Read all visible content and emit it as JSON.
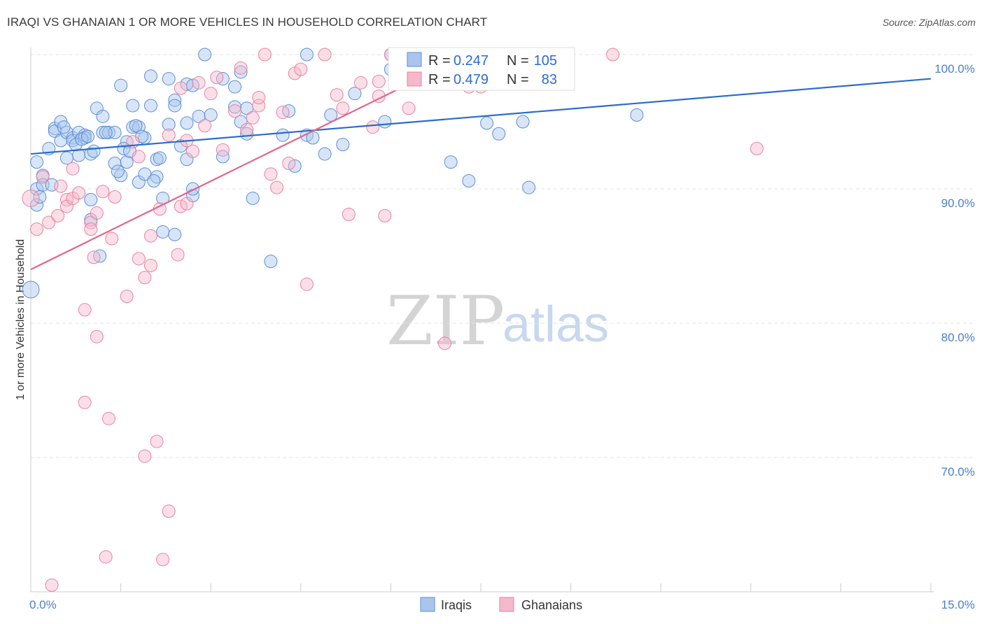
{
  "header": {
    "title": "IRAQI VS GHANAIAN 1 OR MORE VEHICLES IN HOUSEHOLD CORRELATION CHART",
    "source": "Source: ZipAtlas.com"
  },
  "watermark": {
    "zip": "ZIP",
    "atlas": "atlas"
  },
  "colors": {
    "iraqis_fill": "#a9c5ee",
    "iraqis_stroke": "#5b8fd6",
    "iraqis_line": "#2a6cc9",
    "ghanaians_fill": "#f6b8cb",
    "ghanaians_stroke": "#e8829f",
    "ghanaians_line": "#e3648c",
    "tick_text": "#4a7fd0",
    "grid": "#e3e3e3"
  },
  "legend": {
    "iraqis": {
      "r_label": "R =",
      "r_value": "0.247",
      "n_label": "N =",
      "n_value": "105"
    },
    "ghanaians": {
      "r_label": "R =",
      "r_value": "0.479",
      "n_label": "N =",
      "n_value": "83"
    }
  },
  "chart_data": {
    "type": "scatter",
    "title": "IRAQI VS GHANAIAN 1 OR MORE VEHICLES IN HOUSEHOLD CORRELATION CHART",
    "xlabel": "",
    "ylabel": "1 or more Vehicles in Household",
    "xlim": [
      0,
      15
    ],
    "ylim": [
      59.5,
      100.7
    ],
    "x_tick_labels": [
      "0.0%",
      "15.0%"
    ],
    "y_ticks": [
      100,
      90,
      80,
      70
    ],
    "y_tick_labels": [
      "100.0%",
      "90.0%",
      "80.0%",
      "70.0%"
    ],
    "legend_position": "top-center",
    "bottom_legend": [
      "Iraqis",
      "Ghanaians"
    ],
    "series": [
      {
        "name": "Iraqis",
        "trendline": {
          "x0": 0.0,
          "y0": 92.6,
          "x1": 15.0,
          "y1": 98.2
        },
        "points": [
          [
            0.0,
            82.5
          ],
          [
            0.1,
            88.8
          ],
          [
            0.1,
            90.0
          ],
          [
            0.1,
            92.0
          ],
          [
            0.2,
            91.0
          ],
          [
            0.2,
            90.3
          ],
          [
            0.3,
            93.0
          ],
          [
            0.4,
            94.5
          ],
          [
            0.4,
            94.3
          ],
          [
            0.5,
            95.0
          ],
          [
            0.5,
            93.6
          ],
          [
            0.6,
            94.2
          ],
          [
            0.6,
            92.3
          ],
          [
            0.7,
            93.8
          ],
          [
            0.7,
            93.6
          ],
          [
            0.8,
            94.2
          ],
          [
            0.8,
            92.5
          ],
          [
            0.9,
            94.0
          ],
          [
            0.9,
            93.8
          ],
          [
            1.0,
            92.6
          ],
          [
            1.0,
            89.2
          ],
          [
            1.0,
            87.7
          ],
          [
            1.1,
            96.0
          ],
          [
            1.2,
            95.4
          ],
          [
            1.2,
            94.2
          ],
          [
            1.3,
            94.2
          ],
          [
            1.4,
            94.2
          ],
          [
            1.4,
            91.9
          ],
          [
            1.5,
            97.7
          ],
          [
            1.5,
            91.0
          ],
          [
            1.6,
            93.5
          ],
          [
            1.6,
            92.0
          ],
          [
            1.7,
            94.6
          ],
          [
            1.7,
            96.2
          ],
          [
            1.8,
            90.5
          ],
          [
            1.8,
            94.6
          ],
          [
            1.9,
            93.8
          ],
          [
            1.9,
            91.1
          ],
          [
            2.0,
            98.4
          ],
          [
            2.0,
            96.2
          ],
          [
            2.1,
            92.2
          ],
          [
            2.1,
            90.9
          ],
          [
            2.2,
            89.3
          ],
          [
            2.2,
            86.8
          ],
          [
            2.3,
            98.2
          ],
          [
            2.3,
            94.8
          ],
          [
            2.4,
            96.6
          ],
          [
            2.4,
            96.2
          ],
          [
            2.4,
            86.6
          ],
          [
            2.5,
            93.2
          ],
          [
            2.6,
            97.8
          ],
          [
            2.6,
            94.9
          ],
          [
            2.6,
            92.2
          ],
          [
            2.7,
            89.5
          ],
          [
            2.7,
            90.0
          ],
          [
            2.7,
            97.7
          ],
          [
            2.8,
            95.4
          ],
          [
            2.9,
            100.0
          ],
          [
            3.0,
            95.5
          ],
          [
            3.2,
            98.2
          ],
          [
            3.2,
            92.4
          ],
          [
            3.4,
            97.6
          ],
          [
            3.4,
            96.1
          ],
          [
            3.5,
            98.7
          ],
          [
            3.5,
            95.0
          ],
          [
            3.6,
            94.1
          ],
          [
            3.6,
            96.0
          ],
          [
            3.7,
            89.3
          ],
          [
            4.0,
            84.6
          ],
          [
            4.2,
            94.0
          ],
          [
            4.3,
            95.8
          ],
          [
            4.4,
            91.7
          ],
          [
            4.6,
            94.0
          ],
          [
            4.6,
            100.0
          ],
          [
            4.7,
            93.8
          ],
          [
            4.9,
            92.6
          ],
          [
            5.0,
            95.5
          ],
          [
            5.2,
            93.3
          ],
          [
            5.4,
            97.1
          ],
          [
            5.9,
            95.0
          ],
          [
            6.0,
            100.0
          ],
          [
            6.0,
            98.9
          ],
          [
            7.0,
            92.0
          ],
          [
            7.3,
            90.6
          ],
          [
            7.6,
            94.9
          ],
          [
            7.8,
            94.1
          ],
          [
            8.2,
            95.0
          ],
          [
            8.3,
            90.1
          ],
          [
            10.1,
            95.5
          ],
          [
            1.15,
            85.0
          ],
          [
            0.15,
            89.4
          ],
          [
            0.35,
            90.3
          ],
          [
            0.55,
            94.6
          ],
          [
            0.75,
            93.3
          ],
          [
            0.85,
            93.7
          ],
          [
            0.95,
            93.9
          ],
          [
            1.05,
            92.8
          ],
          [
            1.25,
            94.2
          ],
          [
            1.45,
            91.3
          ],
          [
            1.55,
            93.0
          ],
          [
            1.65,
            92.8
          ],
          [
            1.75,
            94.7
          ],
          [
            1.85,
            93.9
          ],
          [
            2.05,
            90.6
          ],
          [
            2.15,
            92.3
          ]
        ]
      },
      {
        "name": "Ghanaians",
        "trendline": {
          "x0": 0.0,
          "y0": 84.0,
          "x1": 7.3,
          "y1": 100.0
        },
        "points": [
          [
            0.0,
            89.3
          ],
          [
            0.1,
            87.0
          ],
          [
            0.2,
            90.9
          ],
          [
            0.3,
            87.5
          ],
          [
            0.5,
            90.2
          ],
          [
            0.6,
            89.2
          ],
          [
            0.6,
            88.7
          ],
          [
            0.7,
            91.5
          ],
          [
            0.7,
            89.3
          ],
          [
            0.8,
            89.7
          ],
          [
            0.9,
            74.1
          ],
          [
            0.9,
            81.0
          ],
          [
            1.0,
            87.5
          ],
          [
            1.0,
            87.0
          ],
          [
            1.1,
            88.2
          ],
          [
            1.1,
            79.0
          ],
          [
            1.2,
            89.8
          ],
          [
            1.3,
            72.9
          ],
          [
            1.4,
            89.4
          ],
          [
            1.6,
            82.0
          ],
          [
            1.7,
            93.5
          ],
          [
            1.8,
            92.4
          ],
          [
            1.8,
            84.8
          ],
          [
            1.9,
            83.4
          ],
          [
            1.9,
            70.1
          ],
          [
            2.0,
            86.5
          ],
          [
            2.0,
            84.3
          ],
          [
            2.1,
            71.2
          ],
          [
            2.2,
            62.4
          ],
          [
            2.3,
            94.0
          ],
          [
            2.3,
            66.0
          ],
          [
            2.5,
            97.5
          ],
          [
            2.5,
            88.7
          ],
          [
            2.6,
            88.9
          ],
          [
            2.6,
            93.6
          ],
          [
            2.7,
            92.8
          ],
          [
            2.8,
            97.9
          ],
          [
            2.9,
            94.7
          ],
          [
            3.0,
            97.1
          ],
          [
            3.1,
            98.3
          ],
          [
            3.2,
            92.9
          ],
          [
            3.4,
            95.8
          ],
          [
            3.5,
            99.0
          ],
          [
            3.6,
            94.4
          ],
          [
            3.7,
            95.3
          ],
          [
            3.8,
            96.2
          ],
          [
            3.8,
            96.8
          ],
          [
            3.9,
            100.0
          ],
          [
            4.0,
            91.1
          ],
          [
            4.1,
            90.1
          ],
          [
            4.2,
            95.7
          ],
          [
            4.3,
            91.9
          ],
          [
            4.4,
            98.6
          ],
          [
            4.5,
            98.9
          ],
          [
            4.6,
            82.9
          ],
          [
            4.9,
            100.0
          ],
          [
            5.1,
            97.0
          ],
          [
            5.2,
            96.0
          ],
          [
            5.3,
            88.1
          ],
          [
            5.5,
            97.9
          ],
          [
            5.7,
            94.6
          ],
          [
            5.8,
            98.0
          ],
          [
            5.8,
            96.9
          ],
          [
            5.9,
            88.0
          ],
          [
            6.0,
            100.0
          ],
          [
            6.2,
            99.3
          ],
          [
            6.3,
            96.0
          ],
          [
            6.5,
            97.9
          ],
          [
            6.8,
            100.0
          ],
          [
            6.9,
            78.5
          ],
          [
            7.3,
            97.6
          ],
          [
            7.5,
            97.6
          ],
          [
            7.7,
            98.1
          ],
          [
            8.1,
            100.0
          ],
          [
            9.7,
            100.0
          ],
          [
            12.1,
            93.0
          ],
          [
            1.25,
            62.6
          ],
          [
            0.35,
            60.5
          ],
          [
            2.45,
            85.1
          ],
          [
            1.05,
            84.9
          ],
          [
            1.35,
            86.3
          ],
          [
            0.45,
            88.0
          ],
          [
            2.15,
            88.5
          ]
        ]
      }
    ]
  }
}
